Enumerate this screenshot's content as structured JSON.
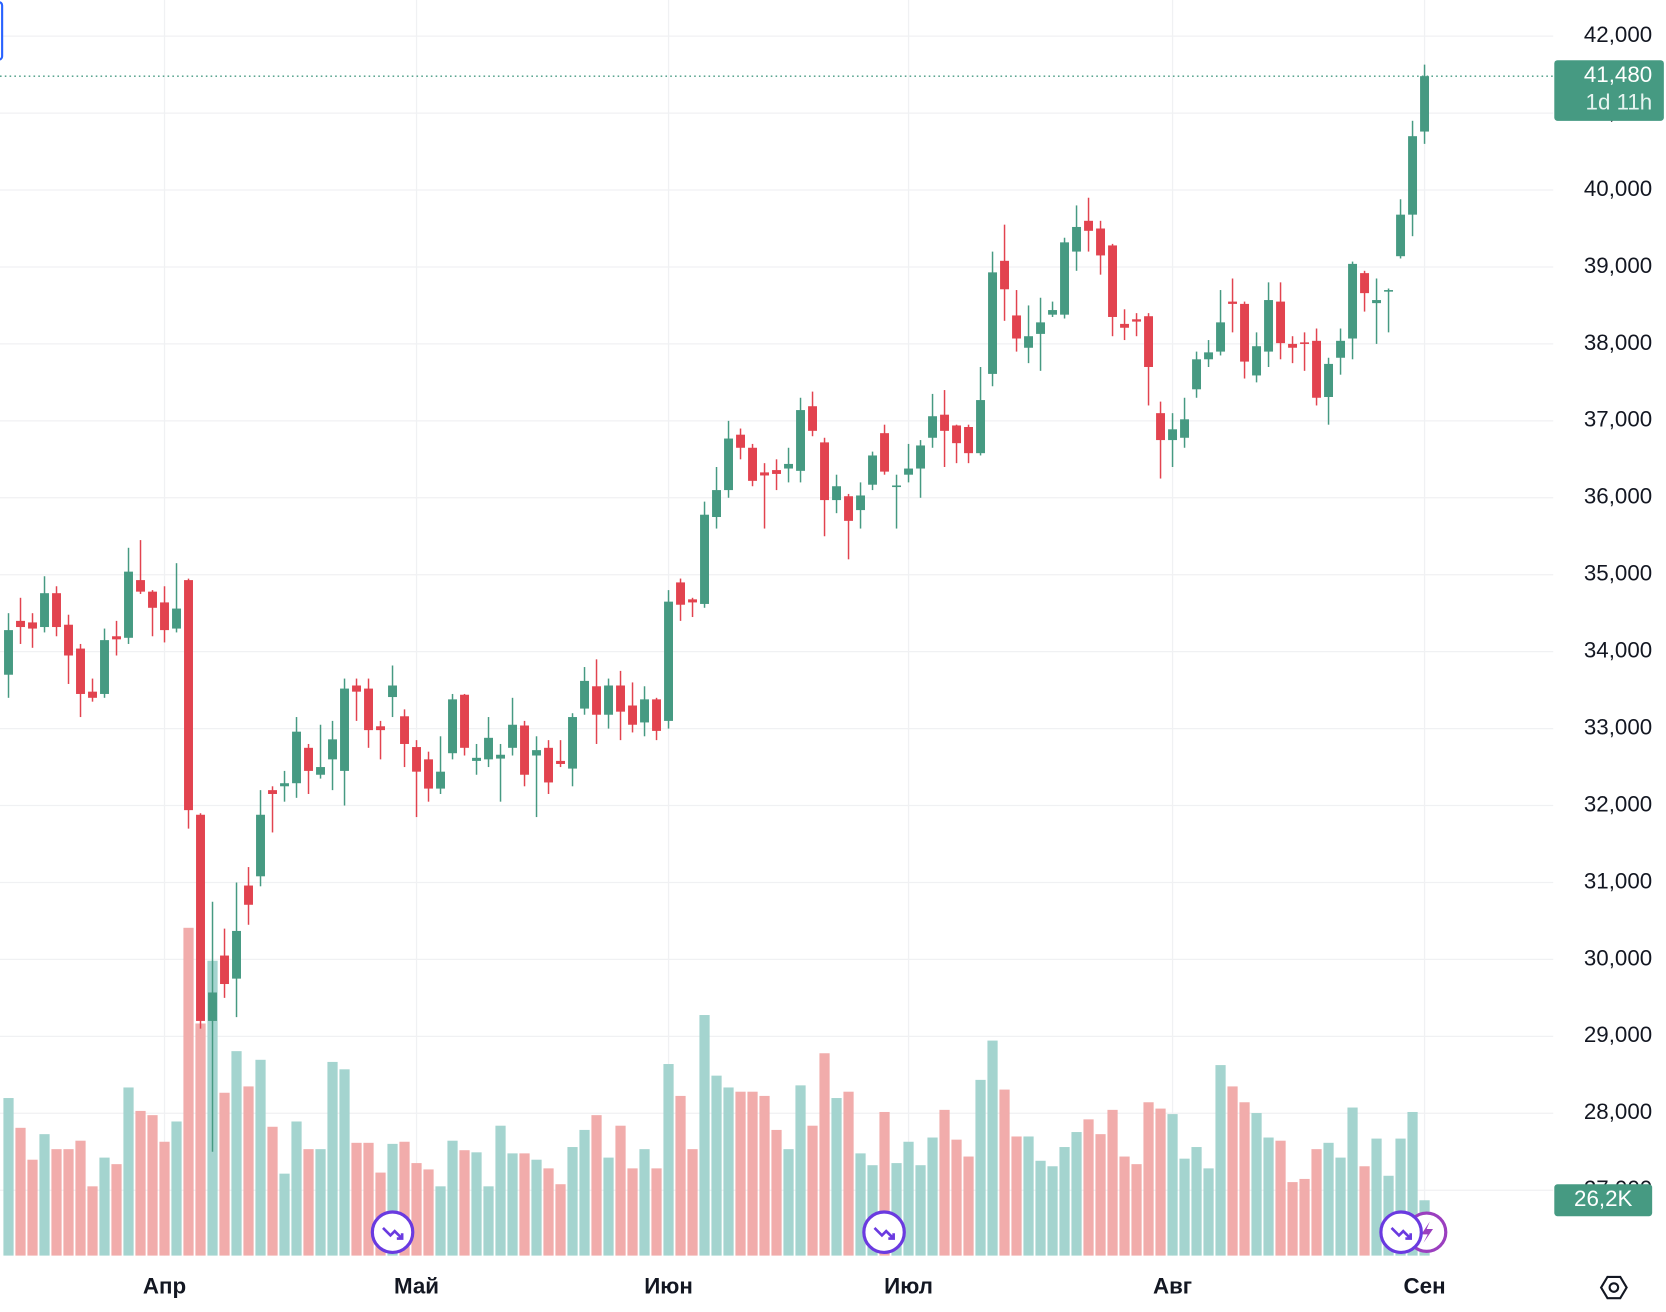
{
  "chart_data": {
    "type": "candlestick",
    "categories": [
      null,
      null,
      null,
      null,
      null,
      null,
      null,
      null,
      null,
      null,
      null,
      null,
      null,
      "Апр",
      null,
      null,
      null,
      null,
      null,
      null,
      null,
      null,
      null,
      null,
      null,
      null,
      null,
      null,
      null,
      null,
      null,
      null,
      null,
      null,
      "Май",
      null,
      null,
      null,
      null,
      null,
      null,
      null,
      null,
      null,
      null,
      null,
      null,
      null,
      null,
      null,
      null,
      null,
      null,
      null,
      null,
      "Июн",
      null,
      null,
      null,
      null,
      null,
      null,
      null,
      null,
      null,
      null,
      null,
      null,
      null,
      null,
      null,
      null,
      null,
      null,
      null,
      "Июл",
      null,
      null,
      null,
      null,
      null,
      null,
      null,
      null,
      null,
      null,
      null,
      null,
      null,
      null,
      null,
      null,
      null,
      null,
      null,
      null,
      null,
      "Авг",
      null,
      null,
      null,
      null,
      null,
      null,
      null,
      null,
      null,
      null,
      null,
      null,
      null,
      null,
      null,
      null,
      null,
      null,
      null,
      null,
      "Сен"
    ],
    "open": [
      33700,
      34400,
      34380,
      34320,
      34760,
      34350,
      34040,
      33480,
      33450,
      34200,
      34180,
      34930,
      34780,
      34640,
      34300,
      34930,
      31880,
      29200,
      30050,
      29750,
      30960,
      31080,
      32200,
      32250,
      32290,
      32750,
      32400,
      32600,
      32450,
      33560,
      33520,
      33030,
      33410,
      33160,
      32760,
      32600,
      32220,
      32680,
      33440,
      32580,
      32600,
      32610,
      32750,
      33040,
      32650,
      32750,
      32580,
      32480,
      33260,
      33550,
      33180,
      33560,
      33300,
      33080,
      33380,
      33100,
      34900,
      34680,
      34620,
      35750,
      36100,
      36820,
      36650,
      36330,
      36360,
      36380,
      36350,
      37190,
      36720,
      35970,
      36020,
      35840,
      36170,
      36840,
      36140,
      36300,
      36380,
      36780,
      37080,
      36940,
      36920,
      36580,
      37610,
      39080,
      38370,
      37950,
      38130,
      38380,
      38380,
      39200,
      39600,
      39500,
      39280,
      38260,
      38320,
      38360,
      37100,
      36750,
      36780,
      37410,
      37800,
      37900,
      38550,
      38520,
      37590,
      37900,
      38550,
      38000,
      38020,
      38040,
      37310,
      37820,
      38070,
      38920,
      38530,
      38680,
      39140,
      39680,
      40760
    ],
    "high": [
      34500,
      34700,
      34500,
      34980,
      34850,
      34480,
      34100,
      33650,
      34300,
      34400,
      35350,
      35450,
      34800,
      34850,
      35150,
      34950,
      31900,
      30750,
      30400,
      31000,
      31200,
      32200,
      32250,
      32450,
      33150,
      32800,
      33050,
      33100,
      33650,
      33650,
      33650,
      33100,
      33820,
      33250,
      32850,
      32700,
      32900,
      33450,
      33450,
      32800,
      33150,
      32800,
      33400,
      33100,
      32900,
      32850,
      32850,
      33200,
      33800,
      33900,
      33650,
      33750,
      33600,
      33550,
      33400,
      34800,
      34950,
      34700,
      35950,
      36400,
      37000,
      36900,
      36700,
      36450,
      36500,
      36650,
      37300,
      37380,
      36780,
      36300,
      36050,
      36200,
      36600,
      36950,
      36300,
      36700,
      36750,
      37350,
      37400,
      36950,
      36950,
      37700,
      39200,
      39550,
      38700,
      38500,
      38600,
      38550,
      39380,
      39800,
      39900,
      39600,
      39300,
      38450,
      38400,
      38400,
      37250,
      37100,
      37300,
      37900,
      38050,
      38700,
      38850,
      38550,
      38150,
      38800,
      38800,
      38100,
      38150,
      38200,
      37820,
      38200,
      39070,
      38950,
      38850,
      38720,
      39880,
      40900,
      41630
    ],
    "low": [
      33400,
      34100,
      34050,
      34250,
      34200,
      33580,
      33150,
      33350,
      33400,
      33950,
      34100,
      34750,
      34200,
      34120,
      34250,
      31700,
      29100,
      27500,
      29500,
      29250,
      30450,
      30950,
      31650,
      32050,
      32100,
      32150,
      32350,
      32200,
      32000,
      33100,
      32750,
      32600,
      33150,
      32500,
      31850,
      32050,
      32150,
      32600,
      32650,
      32400,
      32500,
      32050,
      32650,
      32250,
      31850,
      32150,
      32500,
      32250,
      33180,
      32800,
      33000,
      32850,
      32950,
      32900,
      32850,
      33000,
      34400,
      34450,
      34570,
      35600,
      36000,
      36500,
      36150,
      35600,
      36100,
      36200,
      36200,
      36800,
      35500,
      35800,
      35200,
      35600,
      36100,
      36300,
      35600,
      36200,
      36000,
      36650,
      36400,
      36450,
      36450,
      36550,
      37450,
      38300,
      37900,
      37750,
      37650,
      38350,
      38330,
      38950,
      39200,
      38900,
      38100,
      38050,
      38100,
      37200,
      36250,
      36400,
      36650,
      37300,
      37700,
      37850,
      38150,
      37550,
      37500,
      37700,
      37800,
      37750,
      37650,
      37200,
      36950,
      37600,
      37800,
      38420,
      38000,
      38150,
      39110,
      39400,
      40600
    ],
    "close": [
      34280,
      34320,
      34300,
      34760,
      34320,
      33950,
      33450,
      33400,
      34150,
      34160,
      35040,
      34780,
      34570,
      34280,
      34560,
      31940,
      29200,
      29570,
      29680,
      30370,
      30710,
      31880,
      32150,
      32290,
      32960,
      32450,
      32500,
      32860,
      33520,
      33480,
      32980,
      32980,
      33560,
      32800,
      32440,
      32220,
      32440,
      33380,
      32750,
      32620,
      32880,
      32660,
      33050,
      32400,
      32720,
      32300,
      32540,
      33150,
      33620,
      33180,
      33560,
      33220,
      33050,
      33380,
      32970,
      34650,
      34610,
      34640,
      35780,
      36100,
      36770,
      36650,
      36220,
      36290,
      36310,
      36440,
      37140,
      36870,
      35970,
      36150,
      35700,
      36030,
      36550,
      36340,
      36160,
      36380,
      36680,
      37060,
      36870,
      36710,
      36580,
      37270,
      38930,
      38710,
      38070,
      38100,
      38280,
      38440,
      39320,
      39520,
      39470,
      39150,
      38350,
      38210,
      38290,
      37700,
      36750,
      36890,
      37020,
      37800,
      37890,
      38280,
      38520,
      37770,
      37970,
      38570,
      38010,
      37950,
      38000,
      37300,
      37740,
      38040,
      39040,
      38660,
      38570,
      38700,
      39680,
      40700,
      41480
    ],
    "volume": [
      74600,
      60500,
      45400,
      57500,
      50400,
      50400,
      54400,
      32800,
      46400,
      43300,
      79600,
      68500,
      66500,
      53900,
      63500,
      155200,
      109900,
      139600,
      77100,
      96800,
      80100,
      92700,
      61000,
      38800,
      63500,
      50400,
      50400,
      91700,
      88200,
      53400,
      53400,
      39300,
      52900,
      53900,
      43800,
      40800,
      32800,
      54400,
      49900,
      48900,
      32800,
      61500,
      48400,
      48400,
      45400,
      41300,
      33800,
      51400,
      59500,
      66500,
      46400,
      61500,
      41300,
      50400,
      41300,
      90700,
      75600,
      50400,
      113900,
      85200,
      79600,
      77600,
      77600,
      75600,
      59500,
      50400,
      80600,
      61500,
      95800,
      74600,
      77600,
      48400,
      42800,
      68000,
      43800,
      53900,
      42800,
      55900,
      69000,
      54900,
      46900,
      83200,
      101800,
      78600,
      56400,
      56400,
      44900,
      42300,
      51400,
      58500,
      64500,
      57500,
      69000,
      46900,
      43300,
      72600,
      69600,
      67000,
      45900,
      51400,
      41300,
      90200,
      80100,
      72600,
      67500,
      55900,
      54400,
      34800,
      36300,
      50400,
      53400,
      46400,
      70100,
      42300,
      55400,
      37800,
      55400,
      68000,
      26200
    ],
    "ylim": [
      26150,
      42470
    ],
    "yticks": [
      {
        "value": 27000,
        "label": "27,000"
      },
      {
        "value": 28000,
        "label": "28,000"
      },
      {
        "value": 29000,
        "label": "29,000"
      },
      {
        "value": 30000,
        "label": "30,000"
      },
      {
        "value": 31000,
        "label": "31,000"
      },
      {
        "value": 32000,
        "label": "32,000"
      },
      {
        "value": 33000,
        "label": "33,000"
      },
      {
        "value": 34000,
        "label": "34,000"
      },
      {
        "value": 35000,
        "label": "35,000"
      },
      {
        "value": 36000,
        "label": "36,000"
      },
      {
        "value": 37000,
        "label": "37,000"
      },
      {
        "value": 38000,
        "label": "38,000"
      },
      {
        "value": 39000,
        "label": "39,000"
      },
      {
        "value": 40000,
        "label": "40,000"
      },
      {
        "value": 41000,
        "label": "41,000"
      },
      {
        "value": 42000,
        "label": "42,000"
      }
    ],
    "volume_ylim": [
      0,
      200000
    ],
    "grid": true,
    "up_color": "#469a82",
    "down_color": "#e2434f",
    "volume_up_color": "#a4d4cf",
    "volume_down_color": "#f1acab",
    "last_price": {
      "value": 41480,
      "label": "41,480"
    },
    "countdown": "1d 11h",
    "last_volume": {
      "value": 26200,
      "label": "26,2K"
    }
  }
}
